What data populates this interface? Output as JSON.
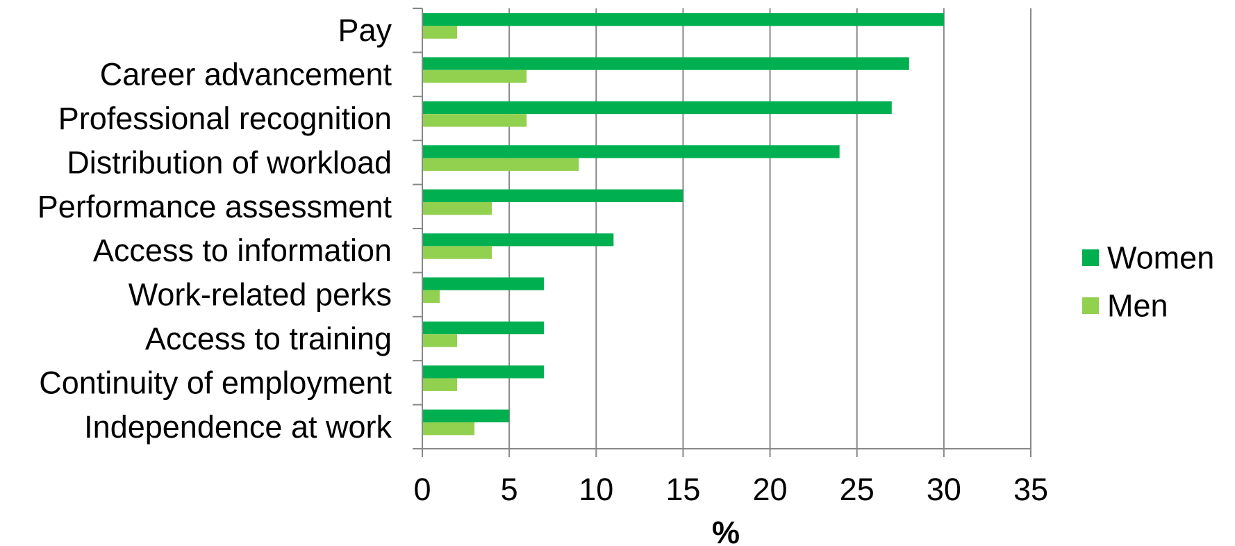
{
  "chart_data": {
    "type": "bar",
    "orientation": "horizontal",
    "categories": [
      "Pay",
      "Career advancement",
      "Professional recognition",
      "Distribution of workload",
      "Performance assessment",
      "Access to information",
      "Work-related perks",
      "Access to training",
      "Continuity of employment",
      "Independence at work"
    ],
    "series": [
      {
        "name": "Women",
        "color": "#00b050",
        "values": [
          30,
          28,
          27,
          24,
          15,
          11,
          7,
          7,
          7,
          5
        ]
      },
      {
        "name": "Men",
        "color": "#92d050",
        "values": [
          2,
          6,
          6,
          9,
          4,
          4,
          1,
          2,
          2,
          3
        ]
      }
    ],
    "xlabel": "%",
    "xlim": [
      0,
      35
    ],
    "xticks": [
      0,
      5,
      10,
      15,
      20,
      25,
      30,
      35
    ],
    "grid": "vertical",
    "legend": "right"
  }
}
